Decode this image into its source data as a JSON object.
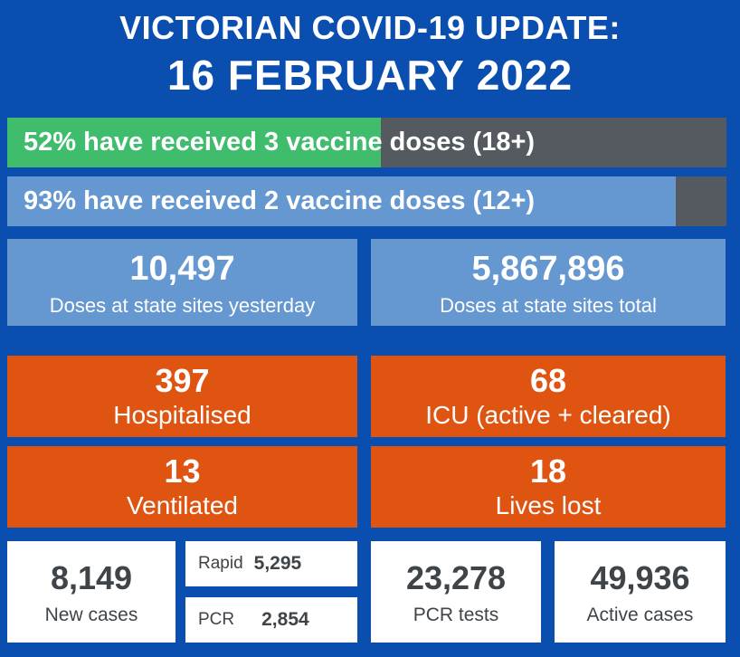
{
  "header": {
    "title_line1": "VICTORIAN COVID-19 UPDATE:",
    "title_line2": "16 FEBRUARY 2022"
  },
  "vaccination": {
    "three_doses": {
      "text": "52% have received 3 vaccine doses (18+)",
      "percent": 52,
      "color": "#3fbd6d"
    },
    "two_doses": {
      "text": "93% have received 2 vaccine doses (12+)",
      "percent": 93,
      "color": "#6597d1"
    }
  },
  "doses": {
    "yesterday": {
      "value": "10,497",
      "label": "Doses at state sites yesterday"
    },
    "total": {
      "value": "5,867,896",
      "label": "Doses at state sites total"
    }
  },
  "hospital": {
    "hospitalised": {
      "value": "397",
      "label": "Hospitalised"
    },
    "icu": {
      "value": "68",
      "label": "ICU (active + cleared)"
    },
    "ventilated": {
      "value": "13",
      "label": "Ventilated"
    },
    "lives_lost": {
      "value": "18",
      "label": "Lives lost"
    }
  },
  "cases": {
    "new_cases": {
      "value": "8,149",
      "label": "New cases"
    },
    "rapid": {
      "label": "Rapid",
      "value": "5,295"
    },
    "pcr": {
      "label": "PCR",
      "value": "2,854"
    },
    "pcr_tests": {
      "value": "23,278",
      "label": "PCR tests"
    },
    "active_cases": {
      "value": "49,936",
      "label": "Active cases"
    }
  },
  "colors": {
    "background": "#0a4fb0",
    "orange": "#e05412",
    "blue_box": "#6597d1",
    "green": "#3fbd6d",
    "grey": "#555a60"
  }
}
